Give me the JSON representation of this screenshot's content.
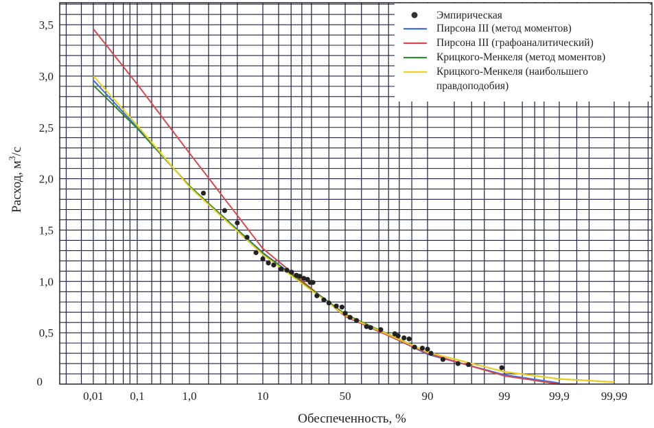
{
  "chart_data": {
    "type": "scatter",
    "title": "",
    "xlabel": "Обеспеченность, %",
    "ylabel": "Расход, м",
    "ylabel_sup": "3",
    "ylabel_suffix": "/с",
    "xscale": "normal-probability",
    "ylim": [
      0,
      3.7
    ],
    "grid": true,
    "legend_position": "top-right",
    "x_ticks": [
      {
        "value": 0.01,
        "label": "0,01"
      },
      {
        "value": 0.1,
        "label": "0,1"
      },
      {
        "value": 1,
        "label": "1,0"
      },
      {
        "value": 10,
        "label": "10"
      },
      {
        "value": 50,
        "label": "50"
      },
      {
        "value": 90,
        "label": "90"
      },
      {
        "value": 99,
        "label": "99"
      },
      {
        "value": 99.9,
        "label": "99,9"
      },
      {
        "value": 99.99,
        "label": "99,99"
      }
    ],
    "y_ticks": [
      {
        "value": 0,
        "label": "0"
      },
      {
        "value": 0.5,
        "label": "0,5"
      },
      {
        "value": 1.0,
        "label": "1,0"
      },
      {
        "value": 1.5,
        "label": "1,5"
      },
      {
        "value": 2.0,
        "label": "2,0"
      },
      {
        "value": 2.5,
        "label": "2,5"
      },
      {
        "value": 3.0,
        "label": "3,0"
      },
      {
        "value": 3.5,
        "label": "3,5"
      }
    ],
    "empirical": {
      "name": "Эмпирическая",
      "color": "#222222",
      "points": [
        [
          1.67,
          1.86
        ],
        [
          3.4,
          1.69
        ],
        [
          5.0,
          1.57
        ],
        [
          6.6,
          1.43
        ],
        [
          8.4,
          1.28
        ],
        [
          10,
          1.22
        ],
        [
          11.6,
          1.18
        ],
        [
          13.3,
          1.16
        ],
        [
          16,
          1.12
        ],
        [
          18.2,
          1.11
        ],
        [
          20.2,
          1.09
        ],
        [
          22.4,
          1.06
        ],
        [
          24,
          1.05
        ],
        [
          26,
          1.03
        ],
        [
          27.9,
          1.02
        ],
        [
          29.3,
          0.99
        ],
        [
          30.8,
          0.99
        ],
        [
          33,
          0.86
        ],
        [
          37,
          0.82
        ],
        [
          40,
          0.79
        ],
        [
          44.5,
          0.76
        ],
        [
          48,
          0.75
        ],
        [
          50,
          0.69
        ],
        [
          53,
          0.65
        ],
        [
          57,
          0.62
        ],
        [
          63,
          0.56
        ],
        [
          65.4,
          0.55
        ],
        [
          71,
          0.53
        ],
        [
          78,
          0.49
        ],
        [
          79.5,
          0.47
        ],
        [
          82,
          0.45
        ],
        [
          84,
          0.44
        ],
        [
          86,
          0.36
        ],
        [
          88.5,
          0.35
        ],
        [
          90,
          0.34
        ],
        [
          90.8,
          0.3
        ],
        [
          93.2,
          0.24
        ],
        [
          95.5,
          0.2
        ],
        [
          96.7,
          0.19
        ],
        [
          98.9,
          0.16
        ]
      ]
    },
    "series": [
      {
        "name": "Пирсона III (метод моментов)",
        "color": "#3f6fd6",
        "points": [
          [
            0.01,
            2.96
          ],
          [
            0.1,
            2.5
          ],
          [
            1,
            1.93
          ],
          [
            10,
            1.28
          ],
          [
            50,
            0.68
          ],
          [
            90,
            0.29
          ],
          [
            99,
            0.09
          ],
          [
            99.9,
            0.01
          ]
        ]
      },
      {
        "name": "Пирсона III (графоаналитический)",
        "color": "#d9474c",
        "points": [
          [
            0.01,
            3.46
          ],
          [
            0.1,
            2.92
          ],
          [
            1,
            2.25
          ],
          [
            10,
            1.32
          ],
          [
            50,
            0.66
          ],
          [
            90,
            0.3
          ],
          [
            99,
            0.08
          ],
          [
            99.9,
            0.0
          ],
          [
            99.95,
            -0.02
          ]
        ]
      },
      {
        "name": "Крицкого-Менкеля (метод моментов)",
        "color": "#2e8a2e",
        "points": [
          [
            0.01,
            2.91
          ],
          [
            0.1,
            2.49
          ],
          [
            1,
            1.93
          ],
          [
            10,
            1.27
          ],
          [
            50,
            0.68
          ],
          [
            90,
            0.31
          ],
          [
            99,
            0.12
          ],
          [
            99.9,
            0.05
          ],
          [
            99.99,
            0.02
          ]
        ]
      },
      {
        "name": "Крицкого-Менкеля (наибольшего правдоподобия)",
        "color": "#f0d020",
        "legend_lines": [
          "Крицкого-Менкеля (наибольшего",
          "правдоподобия)"
        ],
        "points": [
          [
            0.01,
            3.0
          ],
          [
            0.1,
            2.52
          ],
          [
            1,
            1.92
          ],
          [
            10,
            1.26
          ],
          [
            50,
            0.67
          ],
          [
            90,
            0.31
          ],
          [
            99,
            0.12
          ],
          [
            99.9,
            0.05
          ],
          [
            99.99,
            0.02
          ]
        ]
      }
    ]
  }
}
